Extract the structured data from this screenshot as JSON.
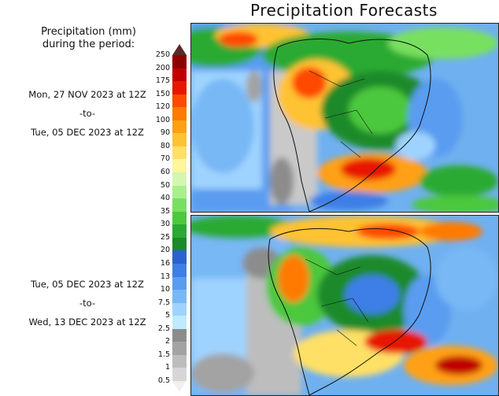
{
  "title": "Precipitation Forecasts",
  "units_label": "Precipitation (mm)\nduring the period:",
  "periods": [
    {
      "start": "Mon, 27 NOV 2023 at 12Z",
      "sep": "-to-",
      "end": "Tue, 05 DEC 2023 at 12Z"
    },
    {
      "start": "Tue, 05 DEC 2023 at 12Z",
      "sep": "-to-",
      "end": "Wed, 13 DEC 2023 at 12Z"
    }
  ],
  "colorbar": {
    "levels": [
      "0.5",
      "1",
      "1.5",
      "2",
      "2.5",
      "5",
      "7.5",
      "10",
      "13",
      "16",
      "20",
      "25",
      "30",
      "35",
      "40",
      "50",
      "60",
      "70",
      "80",
      "90",
      "100",
      "120",
      "150",
      "175",
      "200",
      "250"
    ],
    "colors": [
      "#f0f0f0",
      "#d6d6d6",
      "#bdbdbd",
      "#a3a3a3",
      "#8c8c8c",
      "#bfeaff",
      "#9fd3ff",
      "#78b8f5",
      "#5a9cf0",
      "#3d7fe6",
      "#2a62d0",
      "#1b8a2a",
      "#2aaa32",
      "#4cc83c",
      "#78e060",
      "#a8f08a",
      "#d4f7b0",
      "#fff59a",
      "#ffe066",
      "#ffc233",
      "#ffa014",
      "#ff7a00",
      "#ff4a00",
      "#e81800",
      "#c00000",
      "#8c0000",
      "#5a2a2a"
    ]
  }
}
